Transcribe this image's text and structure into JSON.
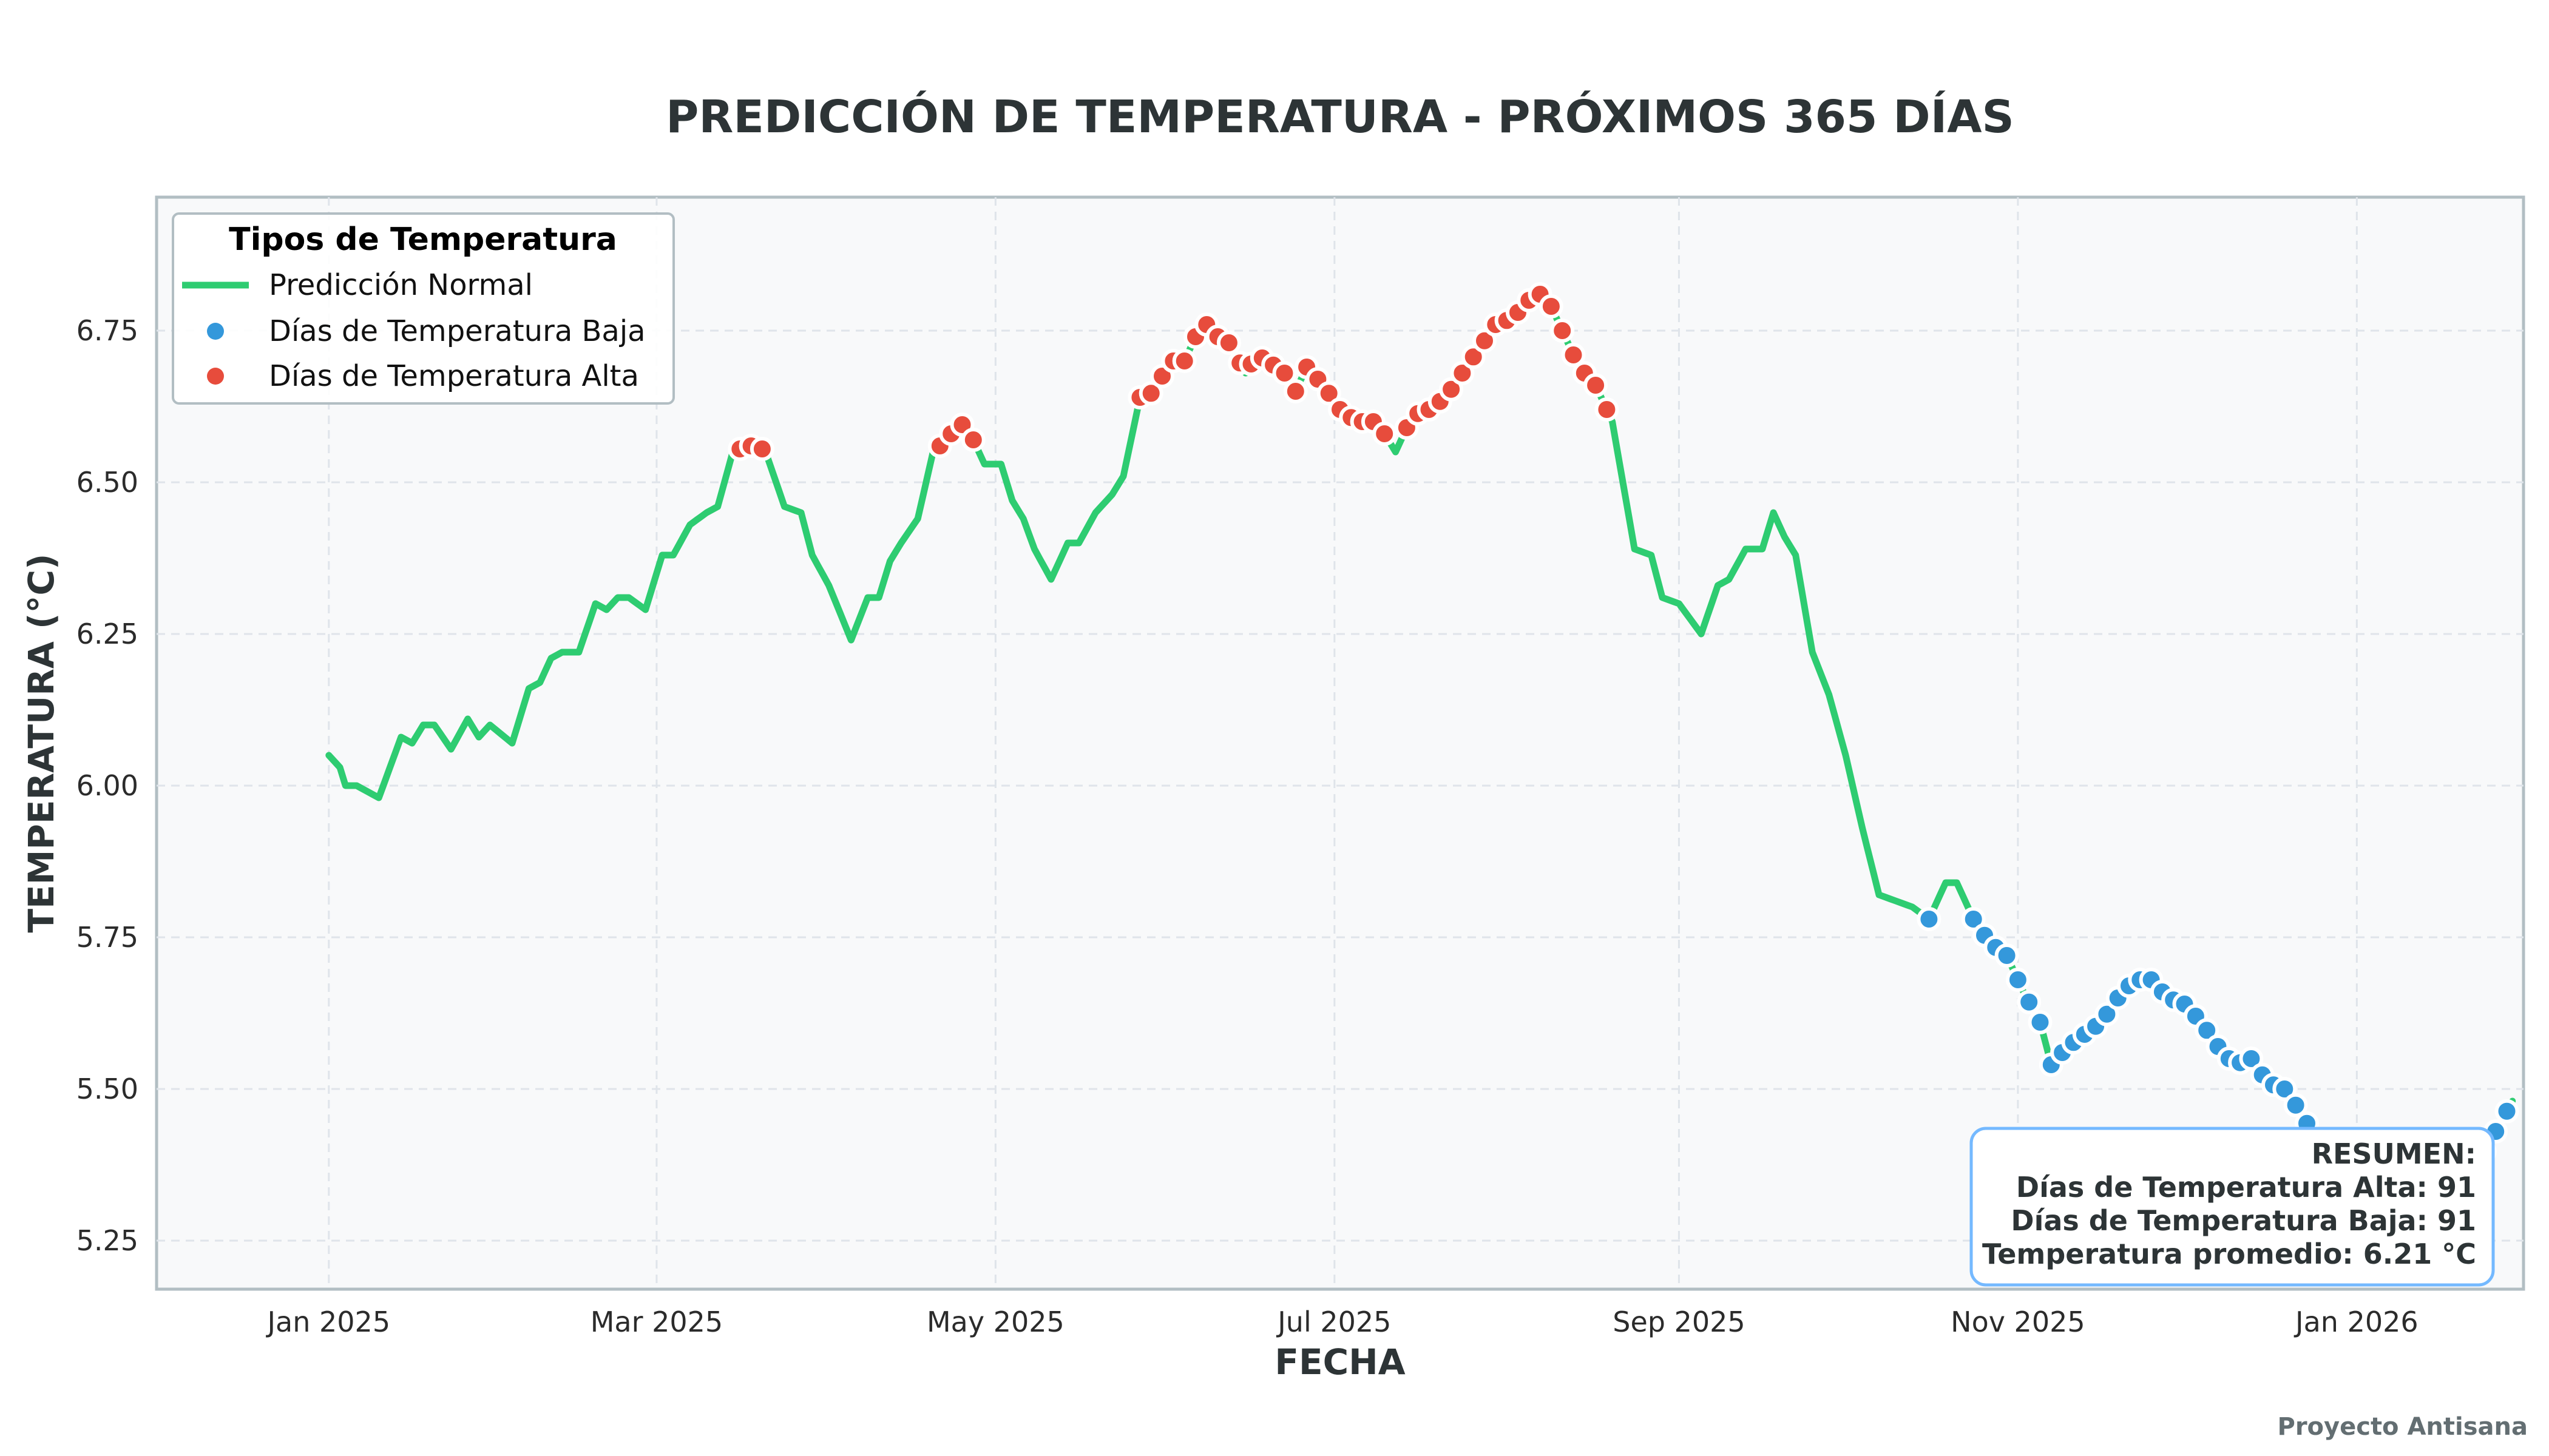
{
  "chart_data": {
    "type": "line",
    "title": "PREDICCIÓN DE TEMPERATURA - PRÓXIMOS 365 DÍAS",
    "xlabel": "FECHA",
    "ylabel": "TEMPERATURA (°C)",
    "x_range": [
      "2024-12-01",
      "2026-01-31"
    ],
    "ylim": [
      5.17,
      6.97
    ],
    "x_ticks": [
      {
        "date": "2025-01-01",
        "label": "Jan 2025"
      },
      {
        "date": "2025-03-01",
        "label": "Mar 2025"
      },
      {
        "date": "2025-05-01",
        "label": "May 2025"
      },
      {
        "date": "2025-07-01",
        "label": "Jul 2025"
      },
      {
        "date": "2025-09-01",
        "label": "Sep 2025"
      },
      {
        "date": "2025-11-01",
        "label": "Nov 2025"
      },
      {
        "date": "2026-01-01",
        "label": "Jan 2026"
      }
    ],
    "y_ticks": [
      {
        "value": 5.25,
        "label": "5.25"
      },
      {
        "value": 5.5,
        "label": "5.50"
      },
      {
        "value": 5.75,
        "label": "5.75"
      },
      {
        "value": 6.0,
        "label": "6.00"
      },
      {
        "value": 6.25,
        "label": "6.25"
      },
      {
        "value": 6.5,
        "label": "6.50"
      },
      {
        "value": 6.75,
        "label": "6.75"
      }
    ],
    "grid": true,
    "legend_position": "top-left",
    "legend": {
      "title": "Tipos de Temperatura",
      "entries": [
        {
          "label": "Predicción Normal",
          "type": "line",
          "color": "#2ecc71"
        },
        {
          "label": "Días de Temperatura Baja",
          "type": "marker",
          "color": "#3498db"
        },
        {
          "label": "Días de Temperatura Alta",
          "type": "marker",
          "color": "#e74c3c"
        }
      ]
    },
    "series": [
      {
        "name": "Predicción Normal",
        "color": "#2ecc71",
        "points": [
          [
            "2025-01-01",
            6.05
          ],
          [
            "2025-01-03",
            6.03
          ],
          [
            "2025-01-04",
            6.0
          ],
          [
            "2025-01-06",
            6.0
          ],
          [
            "2025-01-10",
            5.98
          ],
          [
            "2025-01-12",
            6.03
          ],
          [
            "2025-01-14",
            6.08
          ],
          [
            "2025-01-16",
            6.07
          ],
          [
            "2025-01-18",
            6.1
          ],
          [
            "2025-01-20",
            6.1
          ],
          [
            "2025-01-23",
            6.06
          ],
          [
            "2025-01-26",
            6.11
          ],
          [
            "2025-01-28",
            6.08
          ],
          [
            "2025-01-30",
            6.1
          ],
          [
            "2025-02-03",
            6.07
          ],
          [
            "2025-02-06",
            6.16
          ],
          [
            "2025-02-08",
            6.17
          ],
          [
            "2025-02-10",
            6.21
          ],
          [
            "2025-02-12",
            6.22
          ],
          [
            "2025-02-15",
            6.22
          ],
          [
            "2025-02-18",
            6.3
          ],
          [
            "2025-02-20",
            6.29
          ],
          [
            "2025-02-22",
            6.31
          ],
          [
            "2025-02-24",
            6.31
          ],
          [
            "2025-02-27",
            6.29
          ],
          [
            "2025-03-02",
            6.38
          ],
          [
            "2025-03-04",
            6.38
          ],
          [
            "2025-03-07",
            6.43
          ],
          [
            "2025-03-10",
            6.45
          ],
          [
            "2025-03-12",
            6.46
          ],
          [
            "2025-03-15",
            6.56
          ],
          [
            "2025-03-17",
            6.55
          ],
          [
            "2025-03-19",
            6.57
          ],
          [
            "2025-03-21",
            6.54
          ],
          [
            "2025-03-24",
            6.46
          ],
          [
            "2025-03-27",
            6.45
          ],
          [
            "2025-03-29",
            6.38
          ],
          [
            "2025-04-01",
            6.33
          ],
          [
            "2025-04-05",
            6.24
          ],
          [
            "2025-04-08",
            6.31
          ],
          [
            "2025-04-10",
            6.31
          ],
          [
            "2025-04-12",
            6.37
          ],
          [
            "2025-04-14",
            6.4
          ],
          [
            "2025-04-17",
            6.44
          ],
          [
            "2025-04-20",
            6.56
          ],
          [
            "2025-04-22",
            6.56
          ],
          [
            "2025-04-24",
            6.6
          ],
          [
            "2025-04-26",
            6.59
          ],
          [
            "2025-04-29",
            6.53
          ],
          [
            "2025-05-02",
            6.53
          ],
          [
            "2025-05-04",
            6.47
          ],
          [
            "2025-05-06",
            6.44
          ],
          [
            "2025-05-08",
            6.39
          ],
          [
            "2025-05-11",
            6.34
          ],
          [
            "2025-05-14",
            6.4
          ],
          [
            "2025-05-16",
            6.4
          ],
          [
            "2025-05-19",
            6.45
          ],
          [
            "2025-05-22",
            6.48
          ],
          [
            "2025-05-24",
            6.51
          ],
          [
            "2025-05-27",
            6.64
          ],
          [
            "2025-05-30",
            6.65
          ],
          [
            "2025-06-01",
            6.7
          ],
          [
            "2025-06-04",
            6.7
          ],
          [
            "2025-06-06",
            6.74
          ],
          [
            "2025-06-08",
            6.76
          ],
          [
            "2025-06-10",
            6.74
          ],
          [
            "2025-06-12",
            6.73
          ],
          [
            "2025-06-15",
            6.68
          ],
          [
            "2025-06-17",
            6.71
          ],
          [
            "2025-06-19",
            6.7
          ],
          [
            "2025-06-22",
            6.68
          ],
          [
            "2025-06-24",
            6.65
          ],
          [
            "2025-06-26",
            6.69
          ],
          [
            "2025-06-29",
            6.66
          ],
          [
            "2025-07-02",
            6.62
          ],
          [
            "2025-07-05",
            6.6
          ],
          [
            "2025-07-08",
            6.6
          ],
          [
            "2025-07-10",
            6.58
          ],
          [
            "2025-07-12",
            6.55
          ],
          [
            "2025-07-15",
            6.61
          ],
          [
            "2025-07-18",
            6.62
          ],
          [
            "2025-07-21",
            6.64
          ],
          [
            "2025-07-24",
            6.68
          ],
          [
            "2025-07-27",
            6.72
          ],
          [
            "2025-07-30",
            6.76
          ],
          [
            "2025-08-02",
            6.77
          ],
          [
            "2025-08-05",
            6.8
          ],
          [
            "2025-08-07",
            6.81
          ],
          [
            "2025-08-09",
            6.79
          ],
          [
            "2025-08-12",
            6.73
          ],
          [
            "2025-08-14",
            6.69
          ],
          [
            "2025-08-17",
            6.66
          ],
          [
            "2025-08-20",
            6.6
          ],
          [
            "2025-08-24",
            6.39
          ],
          [
            "2025-08-27",
            6.38
          ],
          [
            "2025-08-29",
            6.31
          ],
          [
            "2025-09-01",
            6.3
          ],
          [
            "2025-09-05",
            6.25
          ],
          [
            "2025-09-08",
            6.33
          ],
          [
            "2025-09-10",
            6.34
          ],
          [
            "2025-09-13",
            6.39
          ],
          [
            "2025-09-16",
            6.39
          ],
          [
            "2025-09-18",
            6.45
          ],
          [
            "2025-09-20",
            6.41
          ],
          [
            "2025-09-22",
            6.38
          ],
          [
            "2025-09-25",
            6.22
          ],
          [
            "2025-09-28",
            6.15
          ],
          [
            "2025-10-01",
            6.05
          ],
          [
            "2025-10-04",
            5.93
          ],
          [
            "2025-10-07",
            5.82
          ],
          [
            "2025-10-10",
            5.81
          ],
          [
            "2025-10-13",
            5.8
          ],
          [
            "2025-10-16",
            5.78
          ],
          [
            "2025-10-19",
            5.84
          ],
          [
            "2025-10-21",
            5.84
          ],
          [
            "2025-10-24",
            5.78
          ],
          [
            "2025-10-27",
            5.74
          ],
          [
            "2025-10-30",
            5.72
          ],
          [
            "2025-11-02",
            5.66
          ],
          [
            "2025-11-05",
            5.61
          ],
          [
            "2025-11-07",
            5.54
          ],
          [
            "2025-11-10",
            5.57
          ],
          [
            "2025-11-13",
            5.59
          ],
          [
            "2025-11-16",
            5.61
          ],
          [
            "2025-11-19",
            5.65
          ],
          [
            "2025-11-22",
            5.68
          ],
          [
            "2025-11-25",
            5.68
          ],
          [
            "2025-11-28",
            5.65
          ],
          [
            "2025-12-01",
            5.64
          ],
          [
            "2025-12-04",
            5.61
          ],
          [
            "2025-12-07",
            5.57
          ],
          [
            "2025-12-10",
            5.54
          ],
          [
            "2025-12-13",
            5.55
          ],
          [
            "2025-12-16",
            5.51
          ],
          [
            "2025-12-19",
            5.5
          ],
          [
            "2025-12-22",
            5.46
          ],
          [
            "2025-12-25",
            5.41
          ],
          [
            "2025-12-28",
            5.38
          ],
          [
            "2025-12-31",
            5.33
          ],
          [
            "2026-01-03",
            5.3
          ],
          [
            "2026-01-06",
            5.25
          ],
          [
            "2026-01-09",
            5.28
          ],
          [
            "2026-01-12",
            5.29
          ],
          [
            "2026-01-14",
            5.27
          ],
          [
            "2026-01-17",
            5.3
          ],
          [
            "2026-01-20",
            5.34
          ],
          [
            "2026-01-23",
            5.38
          ],
          [
            "2026-01-26",
            5.43
          ],
          [
            "2026-01-29",
            5.48
          ]
        ]
      }
    ]
  },
  "summary": {
    "heading": "RESUMEN:",
    "high_days": "Días de Temperatura Alta: 91",
    "low_days": "Días de Temperatura Baja: 91",
    "average": "Temperatura promedio: 6.21 °C"
  },
  "footer": "Proyecto Antisana",
  "colors": {
    "normal": "#2ecc71",
    "low": "#3498db",
    "high": "#e74c3c",
    "plot_bg": "#f8f9fa",
    "summary_border": "#74b9ff"
  }
}
